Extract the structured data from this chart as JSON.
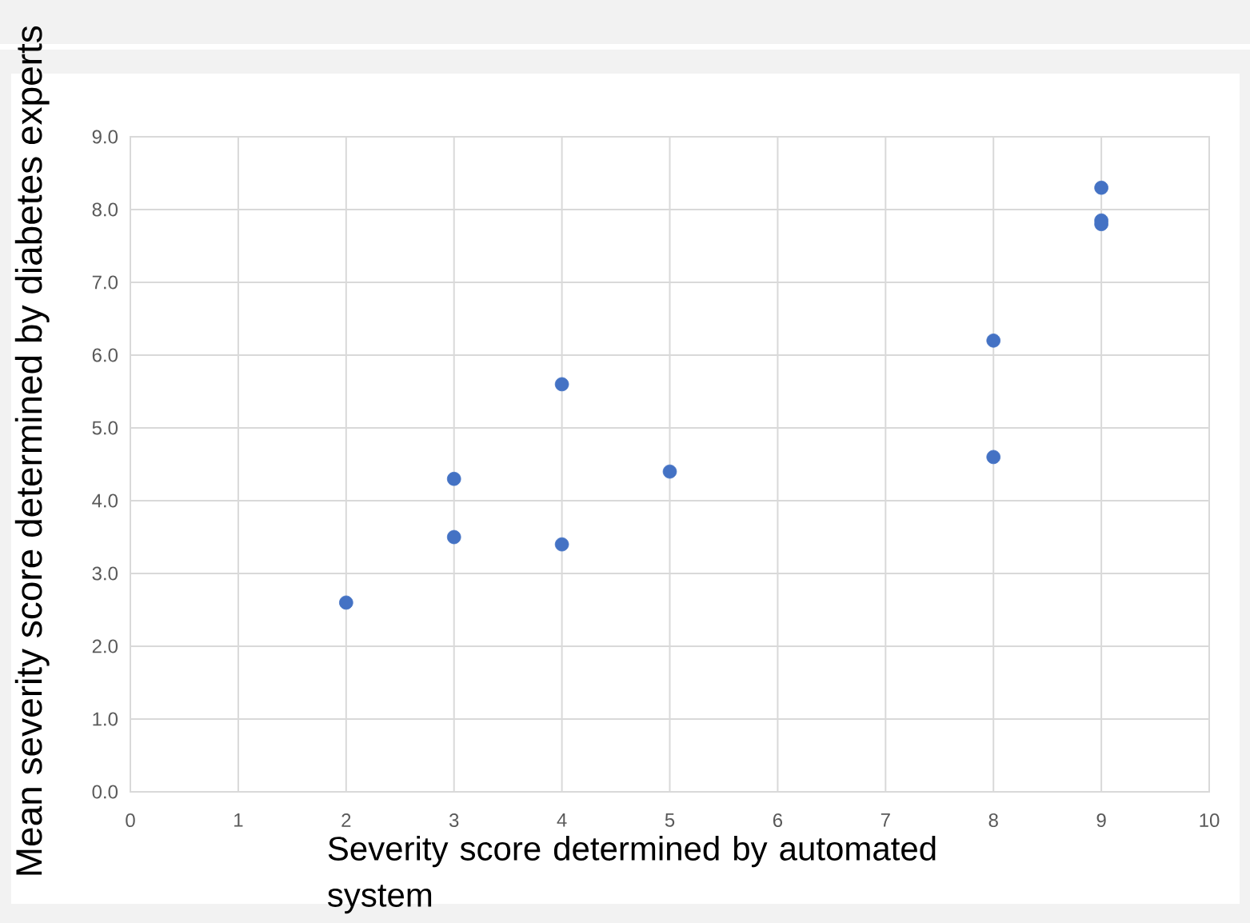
{
  "chart_data": {
    "type": "scatter",
    "xlabel": "Severity score determined by automated system",
    "ylabel": "Mean severity score determined by diabetes experts",
    "x": [
      2,
      3,
      3,
      4,
      4,
      5,
      8,
      8,
      9,
      9,
      9
    ],
    "values": [
      2.6,
      4.3,
      3.5,
      5.6,
      3.4,
      4.4,
      6.2,
      4.6,
      8.3,
      7.85,
      7.8
    ],
    "color": "#4472c4",
    "grid": true,
    "xlim": [
      0,
      10
    ],
    "ylim": [
      0,
      9
    ],
    "xticks": [
      0,
      1,
      2,
      3,
      4,
      5,
      6,
      7,
      8,
      9,
      10
    ],
    "yticks": [
      {
        "value": 0,
        "label": "0.0"
      },
      {
        "value": 1,
        "label": "1.0"
      },
      {
        "value": 2,
        "label": "2.0"
      },
      {
        "value": 3,
        "label": "3.0"
      },
      {
        "value": 4,
        "label": "4.0"
      },
      {
        "value": 5,
        "label": "5.0"
      },
      {
        "value": 6,
        "label": "6.0"
      },
      {
        "value": 7,
        "label": "7.0"
      },
      {
        "value": 8,
        "label": "8.0"
      },
      {
        "value": 9,
        "label": "9.0"
      }
    ]
  }
}
